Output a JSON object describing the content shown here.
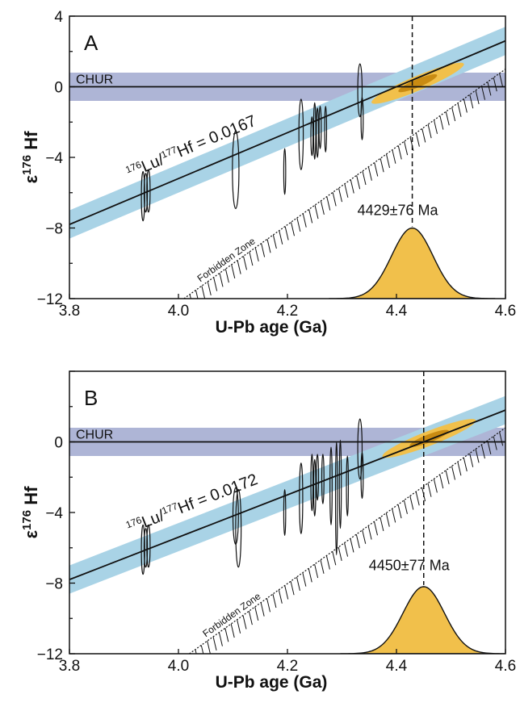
{
  "chart_data": [
    {
      "type": "scatter",
      "panel_label": "A",
      "xlabel": "U-Pb age (Ga)",
      "ylabel_prefix": "ε",
      "ylabel_sup": "176",
      "ylabel_suffix": "Hf",
      "xlim": [
        3.8,
        4.6
      ],
      "ylim": [
        -12,
        4
      ],
      "xticks": [
        "3.8",
        "4.0",
        "4.2",
        "4.4",
        "4.6"
      ],
      "yticks": [
        "4",
        "0",
        "−4",
        "−8",
        "−12"
      ],
      "chur_label": "CHUR",
      "forbidden_label": "Forbidden Zone",
      "age_label": "4429±76 Ma",
      "age_ga": 4.429,
      "ratio_label": {
        "sup1": "176",
        "t1": "Lu/",
        "sup2": "177",
        "t2": "Hf = 0.0167"
      },
      "regression": {
        "x": [
          3.8,
          4.6
        ],
        "y": [
          -7.8,
          2.6
        ]
      },
      "band_halfwidth": 0.8,
      "chur_band": [
        -0.8,
        0.8
      ],
      "forbidden_line": {
        "x": [
          4.01,
          4.6
        ],
        "y": [
          -12,
          1.0
        ]
      },
      "density_peak": -8.0,
      "density_sigma": 0.038,
      "zircons": [
        {
          "x": 3.935,
          "y": -6.2,
          "sx": 0.003,
          "sy": 1.4
        },
        {
          "x": 3.94,
          "y": -6.0,
          "sx": 0.003,
          "sy": 1.1
        },
        {
          "x": 3.945,
          "y": -5.9,
          "sx": 0.003,
          "sy": 1.2
        },
        {
          "x": 4.105,
          "y": -4.7,
          "sx": 0.006,
          "sy": 2.2
        },
        {
          "x": 4.195,
          "y": -4.8,
          "sx": 0.0015,
          "sy": 1.3
        },
        {
          "x": 4.225,
          "y": -2.7,
          "sx": 0.004,
          "sy": 2.0
        },
        {
          "x": 4.245,
          "y": -2.8,
          "sx": 0.002,
          "sy": 1.1
        },
        {
          "x": 4.25,
          "y": -2.5,
          "sx": 0.002,
          "sy": 1.6
        },
        {
          "x": 4.255,
          "y": -2.6,
          "sx": 0.002,
          "sy": 1.4
        },
        {
          "x": 4.26,
          "y": -2.3,
          "sx": 0.002,
          "sy": 1.2
        },
        {
          "x": 4.27,
          "y": -2.4,
          "sx": 0.0015,
          "sy": 1.3
        },
        {
          "x": 4.333,
          "y": -0.2,
          "sx": 0.004,
          "sy": 1.5
        },
        {
          "x": 4.337,
          "y": -1.8,
          "sx": 0.002,
          "sy": 1.2
        }
      ]
    },
    {
      "type": "scatter",
      "panel_label": "B",
      "xlabel": "U-Pb age (Ga)",
      "ylabel_prefix": "ε",
      "ylabel_sup": "176",
      "ylabel_suffix": "Hf",
      "xlim": [
        3.8,
        4.6
      ],
      "ylim": [
        -12,
        4
      ],
      "xticks": [
        "3.8",
        "4.0",
        "4.2",
        "4.4",
        "4.6"
      ],
      "yticks": [
        "0",
        "−4",
        "−8",
        "−12"
      ],
      "chur_label": "CHUR",
      "forbidden_label": "Forbidden Zone",
      "age_label": "4450±77 Ma",
      "age_ga": 4.45,
      "ratio_label": {
        "sup1": "176",
        "t1": "Lu/",
        "sup2": "177",
        "t2": "Hf = 0.0172"
      },
      "regression": {
        "x": [
          3.8,
          4.6
        ],
        "y": [
          -7.8,
          1.8
        ]
      },
      "band_halfwidth": 0.8,
      "chur_band": [
        -0.8,
        0.8
      ],
      "forbidden_line": {
        "x": [
          4.02,
          4.6
        ],
        "y": [
          -12,
          0.8
        ]
      },
      "density_peak": -8.2,
      "density_sigma": 0.038,
      "zircons": [
        {
          "x": 3.935,
          "y": -6.1,
          "sx": 0.003,
          "sy": 1.4
        },
        {
          "x": 3.94,
          "y": -6.0,
          "sx": 0.003,
          "sy": 1.1
        },
        {
          "x": 3.945,
          "y": -5.9,
          "sx": 0.003,
          "sy": 1.2
        },
        {
          "x": 4.105,
          "y": -4.2,
          "sx": 0.005,
          "sy": 1.6
        },
        {
          "x": 4.11,
          "y": -4.9,
          "sx": 0.005,
          "sy": 2.2
        },
        {
          "x": 4.195,
          "y": -4.0,
          "sx": 0.0015,
          "sy": 1.3
        },
        {
          "x": 4.225,
          "y": -3.2,
          "sx": 0.003,
          "sy": 2.0
        },
        {
          "x": 4.245,
          "y": -2.3,
          "sx": 0.002,
          "sy": 1.6
        },
        {
          "x": 4.25,
          "y": -2.6,
          "sx": 0.002,
          "sy": 1.6
        },
        {
          "x": 4.255,
          "y": -2.0,
          "sx": 0.002,
          "sy": 1.3
        },
        {
          "x": 4.265,
          "y": -2.1,
          "sx": 0.002,
          "sy": 1.4
        },
        {
          "x": 4.28,
          "y": -2.5,
          "sx": 0.002,
          "sy": 2.2
        },
        {
          "x": 4.29,
          "y": -3.2,
          "sx": 0.0015,
          "sy": 3.2
        },
        {
          "x": 4.297,
          "y": -2.4,
          "sx": 0.0015,
          "sy": 2.5
        },
        {
          "x": 4.31,
          "y": -2.5,
          "sx": 0.0015,
          "sy": 1.7
        },
        {
          "x": 4.333,
          "y": -0.4,
          "sx": 0.004,
          "sy": 1.7
        },
        {
          "x": 4.337,
          "y": -1.9,
          "sx": 0.002,
          "sy": 1.3
        }
      ]
    }
  ],
  "colors": {
    "regression_band": "#a9d3e6",
    "chur_band": "#aeb5d6",
    "density_fill": "#f1c04b",
    "density_core": "#c98b12",
    "line": "#111111"
  }
}
